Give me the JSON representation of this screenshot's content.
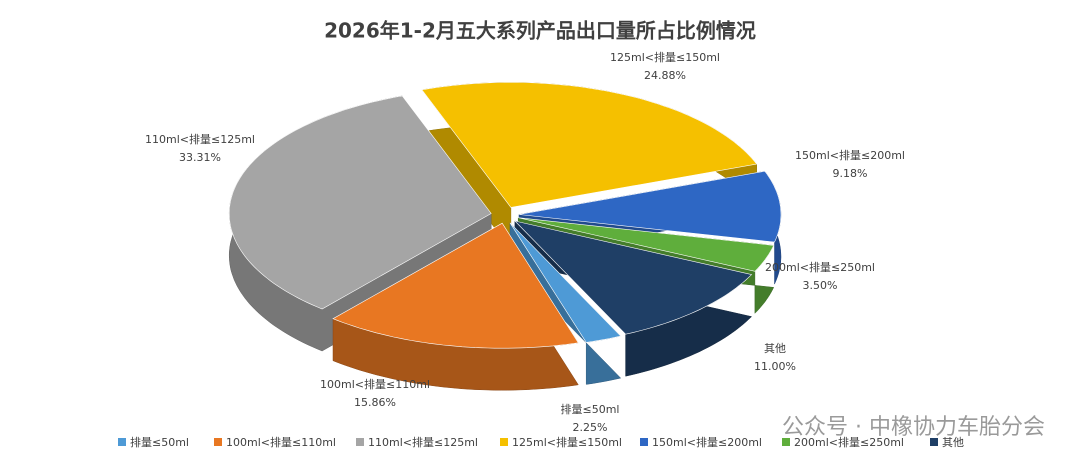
{
  "chart_data": {
    "type": "pie",
    "title": "2026年1-2月五大系列产品出口量所占比例情况",
    "categories": [
      "排量≤50ml",
      "100ml<排量≤110ml",
      "110ml<排量≤125ml",
      "125ml<排量≤150ml",
      "150ml<排量≤200ml",
      "200ml<排量≤250ml",
      "其他"
    ],
    "values": [
      2.25,
      15.86,
      33.31,
      24.88,
      9.18,
      3.5,
      11.0
    ],
    "value_labels": [
      "2.25%",
      "15.86%",
      "33.31%",
      "24.88%",
      "9.18%",
      "3.50%",
      "11.00%"
    ],
    "colors": [
      "#4e9ad6",
      "#e87722",
      "#a5a5a5",
      "#f5c000",
      "#2e67c4",
      "#5fae3c",
      "#1f3f66"
    ],
    "legend": "bottom",
    "watermark": "公众号 · 中橡协力车胎分会"
  }
}
